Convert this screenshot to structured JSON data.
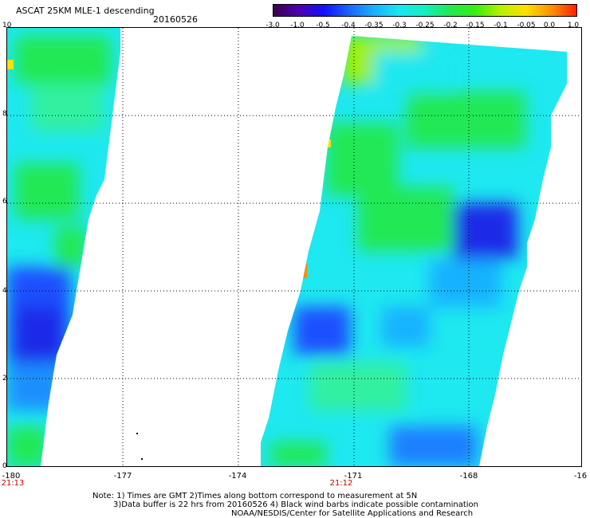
{
  "header": {
    "title": "ASCAT 25KM MLE-1 descending",
    "date": "20160526"
  },
  "colorbar": {
    "tick_labels": [
      "-3.0",
      "-1.0",
      "-0.5",
      "-0.4",
      "-0.35",
      "-0.3",
      "-0.25",
      "-0.2",
      "-0.15",
      "-0.1",
      "-0.05",
      "0.0",
      "1.0"
    ],
    "colors": [
      "#3a0050",
      "#4d00b0",
      "#1010ff",
      "#1c66ff",
      "#19b2ff",
      "#19e7f0",
      "#11f0c0",
      "#22e850",
      "#38ee10",
      "#b8f000",
      "#ffe000",
      "#ff9000",
      "#ff2000"
    ]
  },
  "map": {
    "y_axis_labels": [
      "10",
      "8",
      "6",
      "4",
      "2",
      "0"
    ],
    "x_axis_labels": [
      "-180",
      "-177",
      "-174",
      "-171",
      "-168",
      "-16"
    ],
    "time_labels": [
      "21:13",
      "21:12"
    ],
    "grid_line_style": "dotted",
    "swath_palette": {
      "blue": "#1f4fff",
      "dark_blue": "#1a2ae8",
      "cyan": "#1ee8f0",
      "aqua_green": "#33f0a0",
      "green": "#22e855",
      "yellow_green": "#9ef000",
      "orange": "#ff8a00"
    }
  },
  "footer": {
    "line1": "Note: 1) Times are GMT 2)Times along bottom correspond to measurement at 5N",
    "line2": "3)Data buffer is 22 hrs from 20160526 4) Black wind barbs indicate possible contamination",
    "line3": "NOAA/NESDIS/Center for Satellite Applications and Research"
  }
}
